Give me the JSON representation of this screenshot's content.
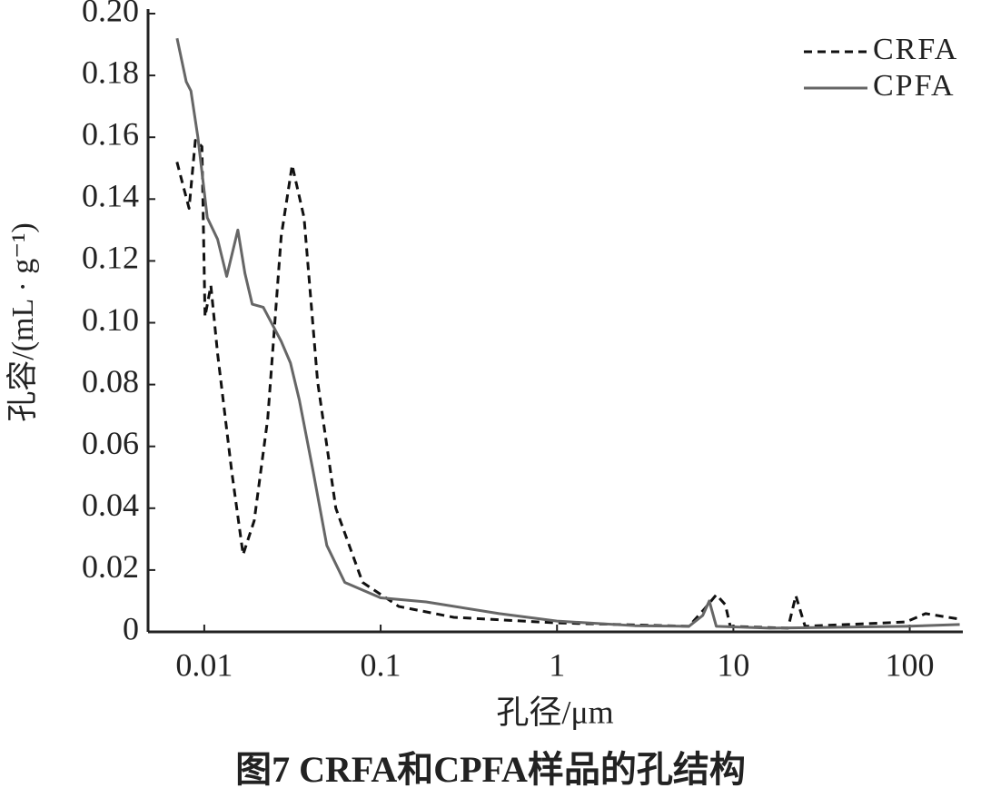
{
  "chart_data": {
    "type": "line",
    "title": "图7  CRFA和CPFA样品的孔结构",
    "xlabel": "孔径/μm",
    "ylabel": "孔容/(mL · g⁻¹)",
    "xscale": "log",
    "xlim": [
      0.0048,
      200
    ],
    "xticks": [
      0.01,
      0.1,
      1,
      10,
      100
    ],
    "ylim": [
      0,
      0.2
    ],
    "yticks": [
      0,
      0.02,
      0.04,
      0.06,
      0.08,
      {
        "value": 0.1,
        "label": "0.10"
      },
      0.12,
      0.14,
      0.16,
      0.18,
      {
        "value": 0.2,
        "label": "0.20"
      }
    ],
    "legend": "upper right",
    "series": [
      {
        "name": "CRFA",
        "color": "#111111",
        "dash": true,
        "x": [
          0.007,
          0.0082,
          0.0089,
          0.0097,
          0.0101,
          0.0109,
          0.0119,
          0.0143,
          0.0166,
          0.0192,
          0.0229,
          0.0273,
          0.0315,
          0.0368,
          0.0439,
          0.0557,
          0.079,
          0.127,
          0.26,
          1,
          5.6,
          6.9,
          8.0,
          9.0,
          9.6,
          20.4,
          22.6,
          25.5,
          95,
          123,
          192
        ],
        "values": [
          0.152,
          0.137,
          0.159,
          0.157,
          0.102,
          0.112,
          0.09,
          0.052,
          0.025,
          0.036,
          0.069,
          0.128,
          0.151,
          0.134,
          0.081,
          0.04,
          0.016,
          0.0082,
          0.0047,
          0.0029,
          0.0018,
          0.0076,
          0.012,
          0.0088,
          0.0018,
          0.0012,
          0.0117,
          0.0018,
          0.0032,
          0.0059,
          0.0041
        ]
      },
      {
        "name": "CPFA",
        "color": "#666666",
        "dash": false,
        "x": [
          0.00701,
          0.0079,
          0.0084,
          0.0092,
          0.0104,
          0.0119,
          0.0134,
          0.0155,
          0.017,
          0.0187,
          0.0216,
          0.0273,
          0.0308,
          0.0346,
          0.0414,
          0.0495,
          0.0626,
          0.1,
          0.181,
          0.47,
          1,
          2.76,
          5.6,
          6.7,
          7.3,
          8.0,
          16.2,
          95,
          192
        ],
        "values": [
          0.192,
          0.178,
          0.175,
          0.16,
          0.134,
          0.127,
          0.115,
          0.13,
          0.116,
          0.106,
          0.105,
          0.094,
          0.087,
          0.075,
          0.052,
          0.028,
          0.016,
          0.011,
          0.0097,
          0.0059,
          0.0035,
          0.002,
          0.0018,
          0.0053,
          0.01,
          0.0018,
          0.0012,
          0.0018,
          0.0024
        ]
      }
    ]
  }
}
